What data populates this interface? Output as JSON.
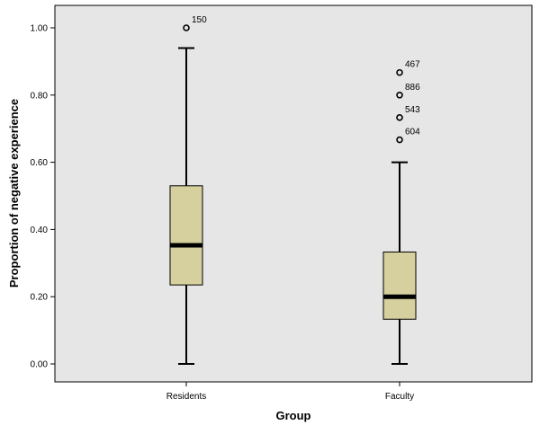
{
  "chart_data": {
    "type": "boxplot",
    "title": "",
    "xlabel": "Group",
    "ylabel": "Proportion of negative experience",
    "ylim": [
      -0.06,
      1.06
    ],
    "yticks": [
      0.0,
      0.2,
      0.4,
      0.6,
      0.8,
      1.0
    ],
    "ytick_labels": [
      "0.00",
      "0.20",
      "0.40",
      "0.60",
      "0.80",
      "1.00"
    ],
    "categories": [
      "Residents",
      "Faculty"
    ],
    "grid": false,
    "colors": {
      "plot_bg": "#e6e6e6",
      "box_fill": "#d6cf9e",
      "line": "#000000",
      "page_bg": "#ffffff"
    },
    "boxes": [
      {
        "category": "Residents",
        "min": 0.0,
        "q1": 0.235,
        "median": 0.353,
        "q3": 0.53,
        "max": 0.94,
        "outliers": [
          {
            "value": 1.0,
            "label": "150"
          }
        ]
      },
      {
        "category": "Faculty",
        "min": 0.0,
        "q1": 0.133,
        "median": 0.2,
        "q3": 0.333,
        "max": 0.6,
        "outliers": [
          {
            "value": 0.867,
            "label": "467"
          },
          {
            "value": 0.8,
            "label": "886"
          },
          {
            "value": 0.733,
            "label": "543"
          },
          {
            "value": 0.667,
            "label": "604"
          }
        ]
      }
    ]
  }
}
